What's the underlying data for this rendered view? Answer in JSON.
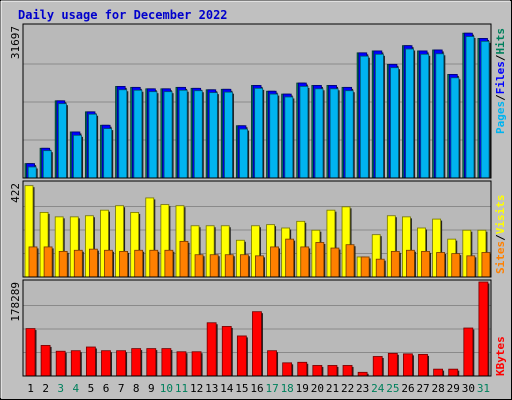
{
  "title": "Daily usage for December 2022",
  "colors": {
    "background": "#c0c0c0",
    "plot_background": "#b9b9b9",
    "title": "#0000cc",
    "hits": "#00805c",
    "files": "#0000ff",
    "pages": "#00b4f0",
    "visits": "#ffff00",
    "sites": "#ff8000",
    "kbytes": "#ff0000",
    "weekend": "#00805c",
    "weekday": "#000000"
  },
  "chart_data": [
    {
      "type": "bar",
      "panel": "top",
      "ymax_label": "31697",
      "ymax": 31697,
      "series_label_parts": [
        "Pages",
        "Files",
        "Hits"
      ],
      "categories": [
        "1",
        "2",
        "3",
        "4",
        "5",
        "6",
        "7",
        "8",
        "9",
        "10",
        "11",
        "12",
        "13",
        "14",
        "15",
        "16",
        "17",
        "18",
        "19",
        "20",
        "21",
        "22",
        "23",
        "24",
        "25",
        "26",
        "27",
        "28",
        "29",
        "30",
        "31"
      ],
      "weekend": [
        false,
        false,
        true,
        true,
        false,
        false,
        false,
        false,
        false,
        true,
        true,
        false,
        false,
        false,
        false,
        false,
        true,
        true,
        false,
        false,
        false,
        false,
        false,
        true,
        true,
        false,
        false,
        false,
        false,
        false,
        true
      ],
      "series": [
        {
          "name": "Hits",
          "values": [
            3000,
            6200,
            16100,
            9600,
            13800,
            11000,
            19100,
            18900,
            18600,
            18600,
            18900,
            18700,
            18400,
            18500,
            10900,
            19300,
            18100,
            17500,
            19800,
            19300,
            19300,
            18900,
            26100,
            26500,
            23700,
            27600,
            26500,
            26700,
            21600,
            30200,
            29100
          ]
        },
        {
          "name": "Files",
          "values": [
            3000,
            6200,
            16100,
            9600,
            13800,
            11000,
            19100,
            18900,
            18600,
            18600,
            18900,
            18700,
            18400,
            18500,
            10900,
            19300,
            18100,
            17500,
            19800,
            19300,
            19300,
            18900,
            26100,
            26500,
            23700,
            27600,
            26500,
            26700,
            21600,
            30200,
            29100
          ]
        },
        {
          "name": "Pages",
          "values": [
            2300,
            5700,
            15500,
            8900,
            13300,
            10300,
            18400,
            18300,
            18000,
            18000,
            18300,
            18200,
            17800,
            17900,
            10200,
            18700,
            17500,
            16900,
            19100,
            18600,
            18600,
            18200,
            25400,
            25800,
            23000,
            26900,
            25800,
            25900,
            20900,
            29500,
            28500
          ]
        }
      ]
    },
    {
      "type": "bar",
      "panel": "middle",
      "ymax_label": "422",
      "ymax": 422,
      "series_label_parts": [
        "Sites",
        "Visits"
      ],
      "categories": [
        "1",
        "2",
        "3",
        "4",
        "5",
        "6",
        "7",
        "8",
        "9",
        "10",
        "11",
        "12",
        "13",
        "14",
        "15",
        "16",
        "17",
        "18",
        "19",
        "20",
        "21",
        "22",
        "23",
        "24",
        "25",
        "26",
        "27",
        "28",
        "29",
        "30",
        "31"
      ],
      "series": [
        {
          "name": "Visits",
          "values": [
            410,
            290,
            270,
            270,
            275,
            300,
            320,
            290,
            355,
            325,
            320,
            230,
            230,
            230,
            165,
            230,
            235,
            220,
            250,
            210,
            300,
            315,
            90,
            190,
            275,
            270,
            220,
            260,
            170,
            210,
            210
          ]
        },
        {
          "name": "Sites",
          "values": [
            135,
            135,
            115,
            120,
            125,
            120,
            115,
            120,
            120,
            120,
            160,
            100,
            100,
            100,
            100,
            95,
            135,
            170,
            135,
            155,
            130,
            145,
            90,
            80,
            115,
            120,
            115,
            110,
            105,
            95,
            110
          ]
        }
      ]
    },
    {
      "type": "bar",
      "panel": "bottom",
      "ymax_label": "178289",
      "ymax": 178289,
      "series_label_parts": [
        "KBytes"
      ],
      "categories": [
        "1",
        "2",
        "3",
        "4",
        "5",
        "6",
        "7",
        "8",
        "9",
        "10",
        "11",
        "12",
        "13",
        "14",
        "15",
        "16",
        "17",
        "18",
        "19",
        "20",
        "21",
        "22",
        "23",
        "24",
        "25",
        "26",
        "27",
        "28",
        "29",
        "30",
        "31"
      ],
      "series": [
        {
          "name": "KBytes",
          "values": [
            90000,
            58000,
            47000,
            48000,
            55000,
            48000,
            48000,
            52000,
            52000,
            52000,
            46000,
            46000,
            101000,
            94000,
            76000,
            122000,
            48000,
            25000,
            26000,
            20000,
            20000,
            20000,
            7000,
            37000,
            43000,
            42000,
            41000,
            13000,
            13000,
            91000,
            178289
          ]
        }
      ]
    }
  ]
}
